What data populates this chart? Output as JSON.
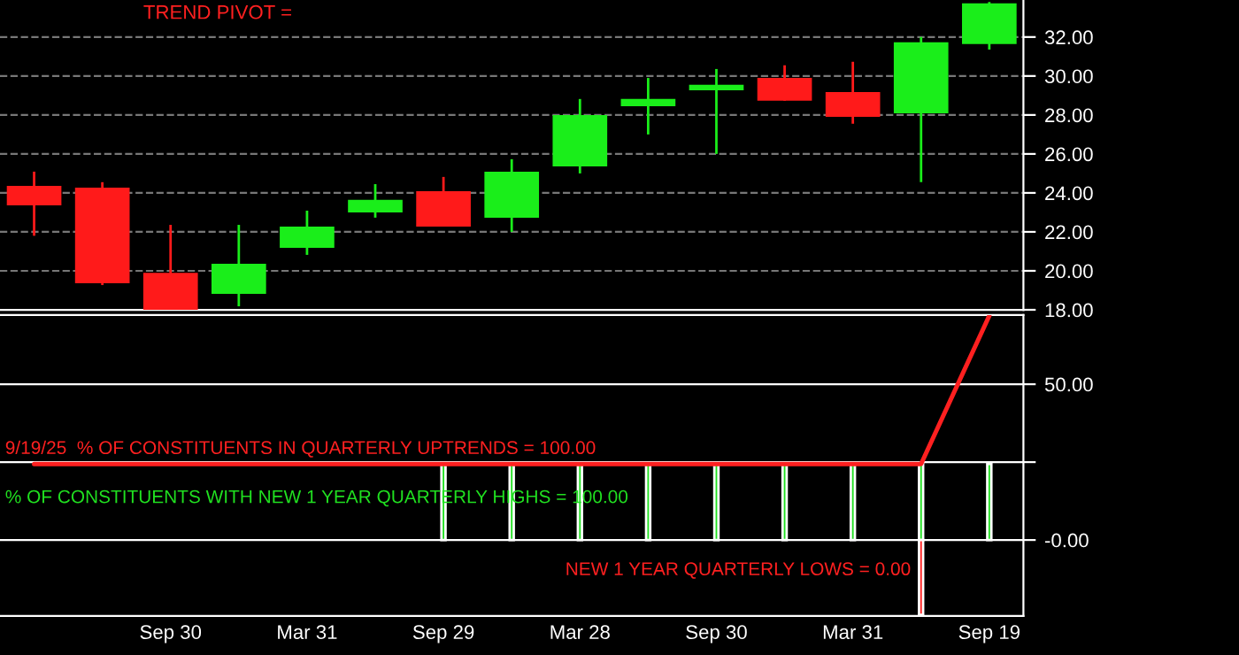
{
  "chart_data": [
    {
      "type": "candlestick",
      "annotations": [
        "TREND PIVOT ="
      ],
      "categories": [
        null,
        null,
        null,
        null,
        null,
        null,
        null,
        null,
        null,
        null,
        null,
        null,
        null,
        null,
        null
      ],
      "ohlc": [
        [
          24.36,
          25.09,
          21.8,
          23.36
        ],
        [
          24.27,
          24.55,
          19.27,
          19.36
        ],
        [
          19.9,
          22.36,
          18.0,
          18.0
        ],
        [
          18.82,
          22.36,
          18.18,
          20.36
        ],
        [
          21.18,
          23.09,
          20.82,
          22.27
        ],
        [
          23.0,
          24.45,
          22.73,
          23.64
        ],
        [
          24.09,
          24.82,
          22.27,
          22.27
        ],
        [
          22.73,
          25.73,
          22.0,
          25.09
        ],
        [
          25.36,
          28.82,
          25.0,
          28.0
        ],
        [
          28.45,
          29.9,
          27.0,
          28.82
        ],
        [
          29.27,
          30.36,
          26.0,
          29.55
        ],
        [
          29.9,
          30.55,
          28.73,
          28.73
        ],
        [
          29.18,
          30.73,
          27.55,
          27.9
        ],
        [
          28.09,
          32.0,
          24.55,
          31.73
        ],
        [
          31.64,
          33.8,
          31.36,
          33.73
        ]
      ],
      "colors": [
        "#ff1a1a",
        "#ff1a1a",
        "#ff1a1a",
        "#1aee1a",
        "#1aee1a",
        "#1aee1a",
        "#ff1a1a",
        "#1aee1a",
        "#1aee1a",
        "#1aee1a",
        "#1aee1a",
        "#ff1a1a",
        "#ff1a1a",
        "#1aee1a",
        "#1aee1a"
      ],
      "ylim": [
        18,
        33.9
      ],
      "yticks": [
        {
          "value": 18,
          "label": "18.00"
        },
        {
          "value": 20,
          "label": "20.00"
        },
        {
          "value": 22,
          "label": "22.00"
        },
        {
          "value": 24,
          "label": "24.00"
        },
        {
          "value": 26,
          "label": "26.00"
        },
        {
          "value": 28,
          "label": "28.00"
        },
        {
          "value": 30,
          "label": "30.00"
        },
        {
          "value": 32,
          "label": "32.00"
        }
      ],
      "grid": "y",
      "tick_labels": "y"
    },
    {
      "type": "bar",
      "categories": [
        null,
        null,
        "Sep 30",
        null,
        "Mar 31",
        null,
        "Sep 29",
        null,
        "Mar 28",
        null,
        "Sep 30",
        null,
        "Mar 31",
        null,
        "Sep 19"
      ],
      "series": [
        {
          "type": "line",
          "name": "9/19/25  % OF CONSTITUENTS IN QUARTERLY UPTRENDS = 100.00",
          "color": "#ff2020",
          "values": [
            24.4,
            24.4,
            24.4,
            24.4,
            24.4,
            24.4,
            24.4,
            24.4,
            24.4,
            24.4,
            24.4,
            24.4,
            24.4,
            24.4,
            72
          ]
        },
        {
          "type": "bar",
          "name": "% OF CONSTITUENTS WITH NEW 1 YEAR QUARTERLY HIGHS = 100.00",
          "color": "#20e020",
          "values": [
            null,
            null,
            null,
            null,
            null,
            null,
            24.4,
            24.4,
            24.4,
            24.4,
            24.4,
            24.4,
            24.4,
            24.4,
            24.4
          ]
        },
        {
          "type": "bar",
          "name": "NEW 1 YEAR QUARTERLY LOWS = 0.00",
          "color": "#ff2020",
          "values": [
            null,
            null,
            null,
            null,
            null,
            null,
            null,
            null,
            null,
            null,
            null,
            null,
            null,
            -24,
            null
          ]
        }
      ],
      "ylim": [
        -24.4,
        72.2
      ],
      "yticks": [
        {
          "value": 0,
          "label": "-0.00"
        },
        {
          "value": 25,
          "label": null
        },
        {
          "value": 50,
          "label": "50.00"
        }
      ],
      "grid": "y"
    }
  ]
}
